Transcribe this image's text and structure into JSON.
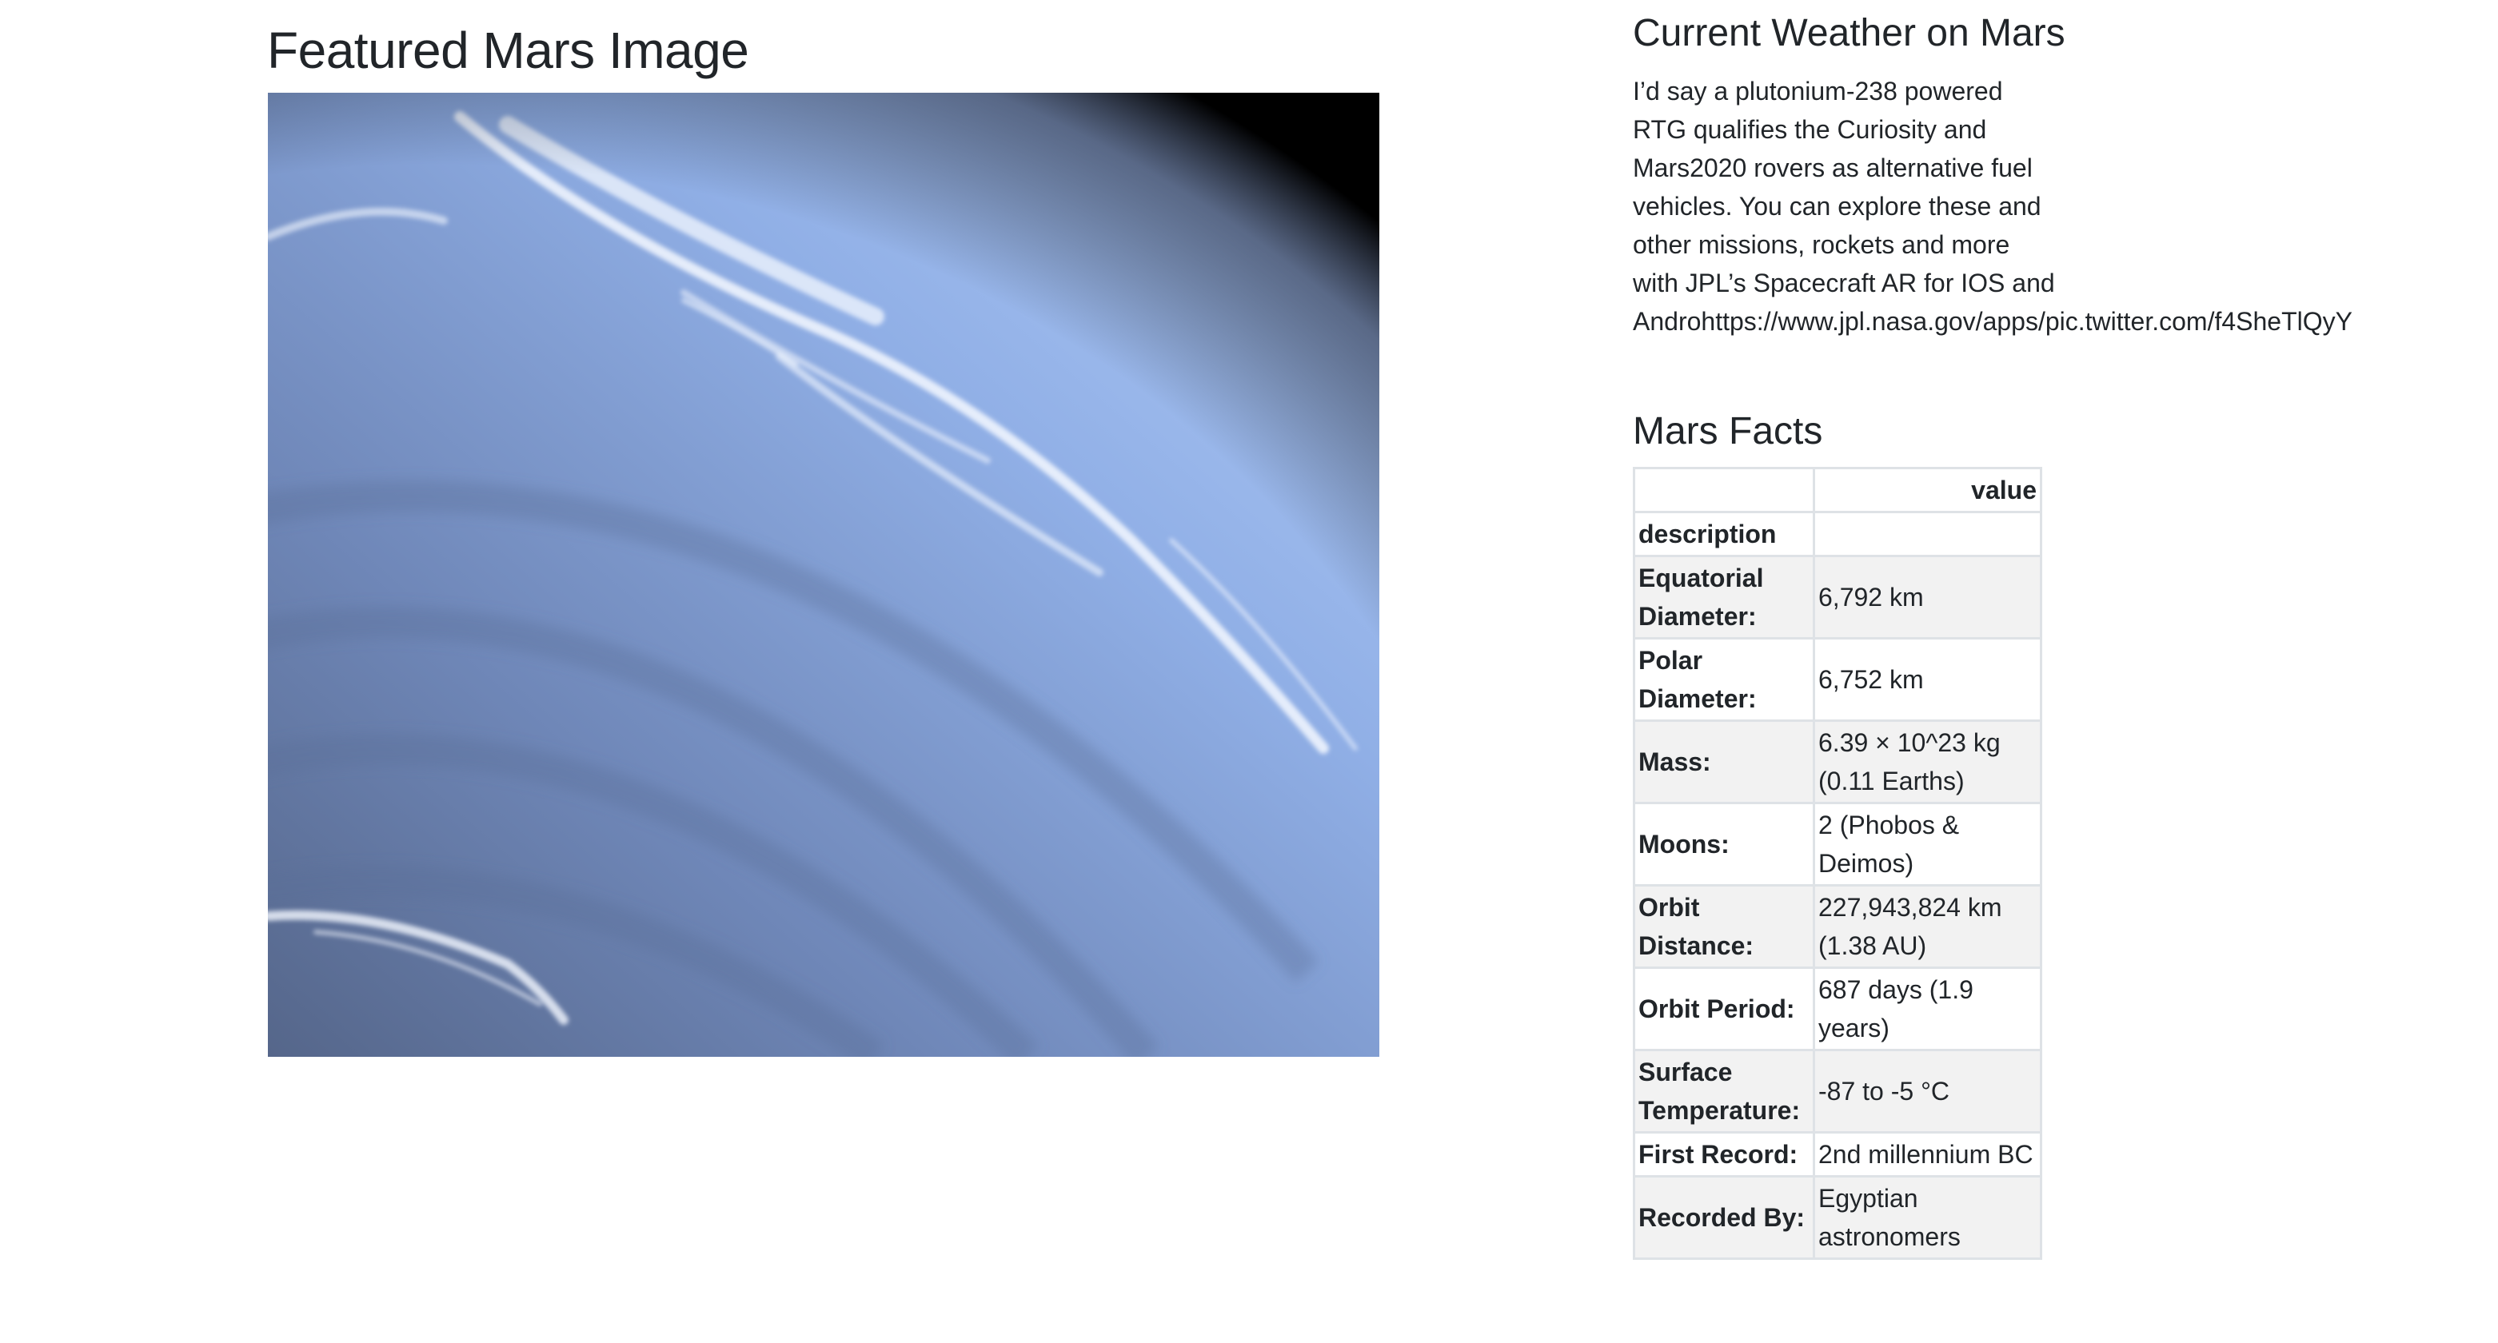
{
  "featured": {
    "title": "Featured Mars Image"
  },
  "weather": {
    "title": "Current Weather on Mars",
    "text_main": "I’d say a plutonium-238 powered RTG qualifies the Curiosity and Mars2020 rovers as alternative fuel vehicles. You can explore these and other missions, rockets and more with JPL’s Spacecraft AR for IOS and",
    "text_url": "Androhttps://www.jpl.nasa.gov/apps/pic.twitter.com/f4SheTlQyY"
  },
  "facts": {
    "title": "Mars Facts",
    "header_blank": "",
    "header_value": "value",
    "index_label": "description",
    "rows": [
      {
        "label": "Equatorial Diameter:",
        "value": "6,792 km"
      },
      {
        "label": "Polar Diameter:",
        "value": "6,752 km"
      },
      {
        "label": "Mass:",
        "value": "6.39 × 10^23 kg (0.11 Earths)"
      },
      {
        "label": "Moons:",
        "value": "2 (Phobos & Deimos)"
      },
      {
        "label": "Orbit Distance:",
        "value": "227,943,824 km (1.38 AU)"
      },
      {
        "label": "Orbit Period:",
        "value": "687 days (1.9 years)"
      },
      {
        "label": "Surface Temperature:",
        "value": "-87 to -5 °C"
      },
      {
        "label": "First Record:",
        "value": "2nd millennium BC"
      },
      {
        "label": "Recorded By:",
        "value": "Egyptian astronomers"
      }
    ]
  }
}
